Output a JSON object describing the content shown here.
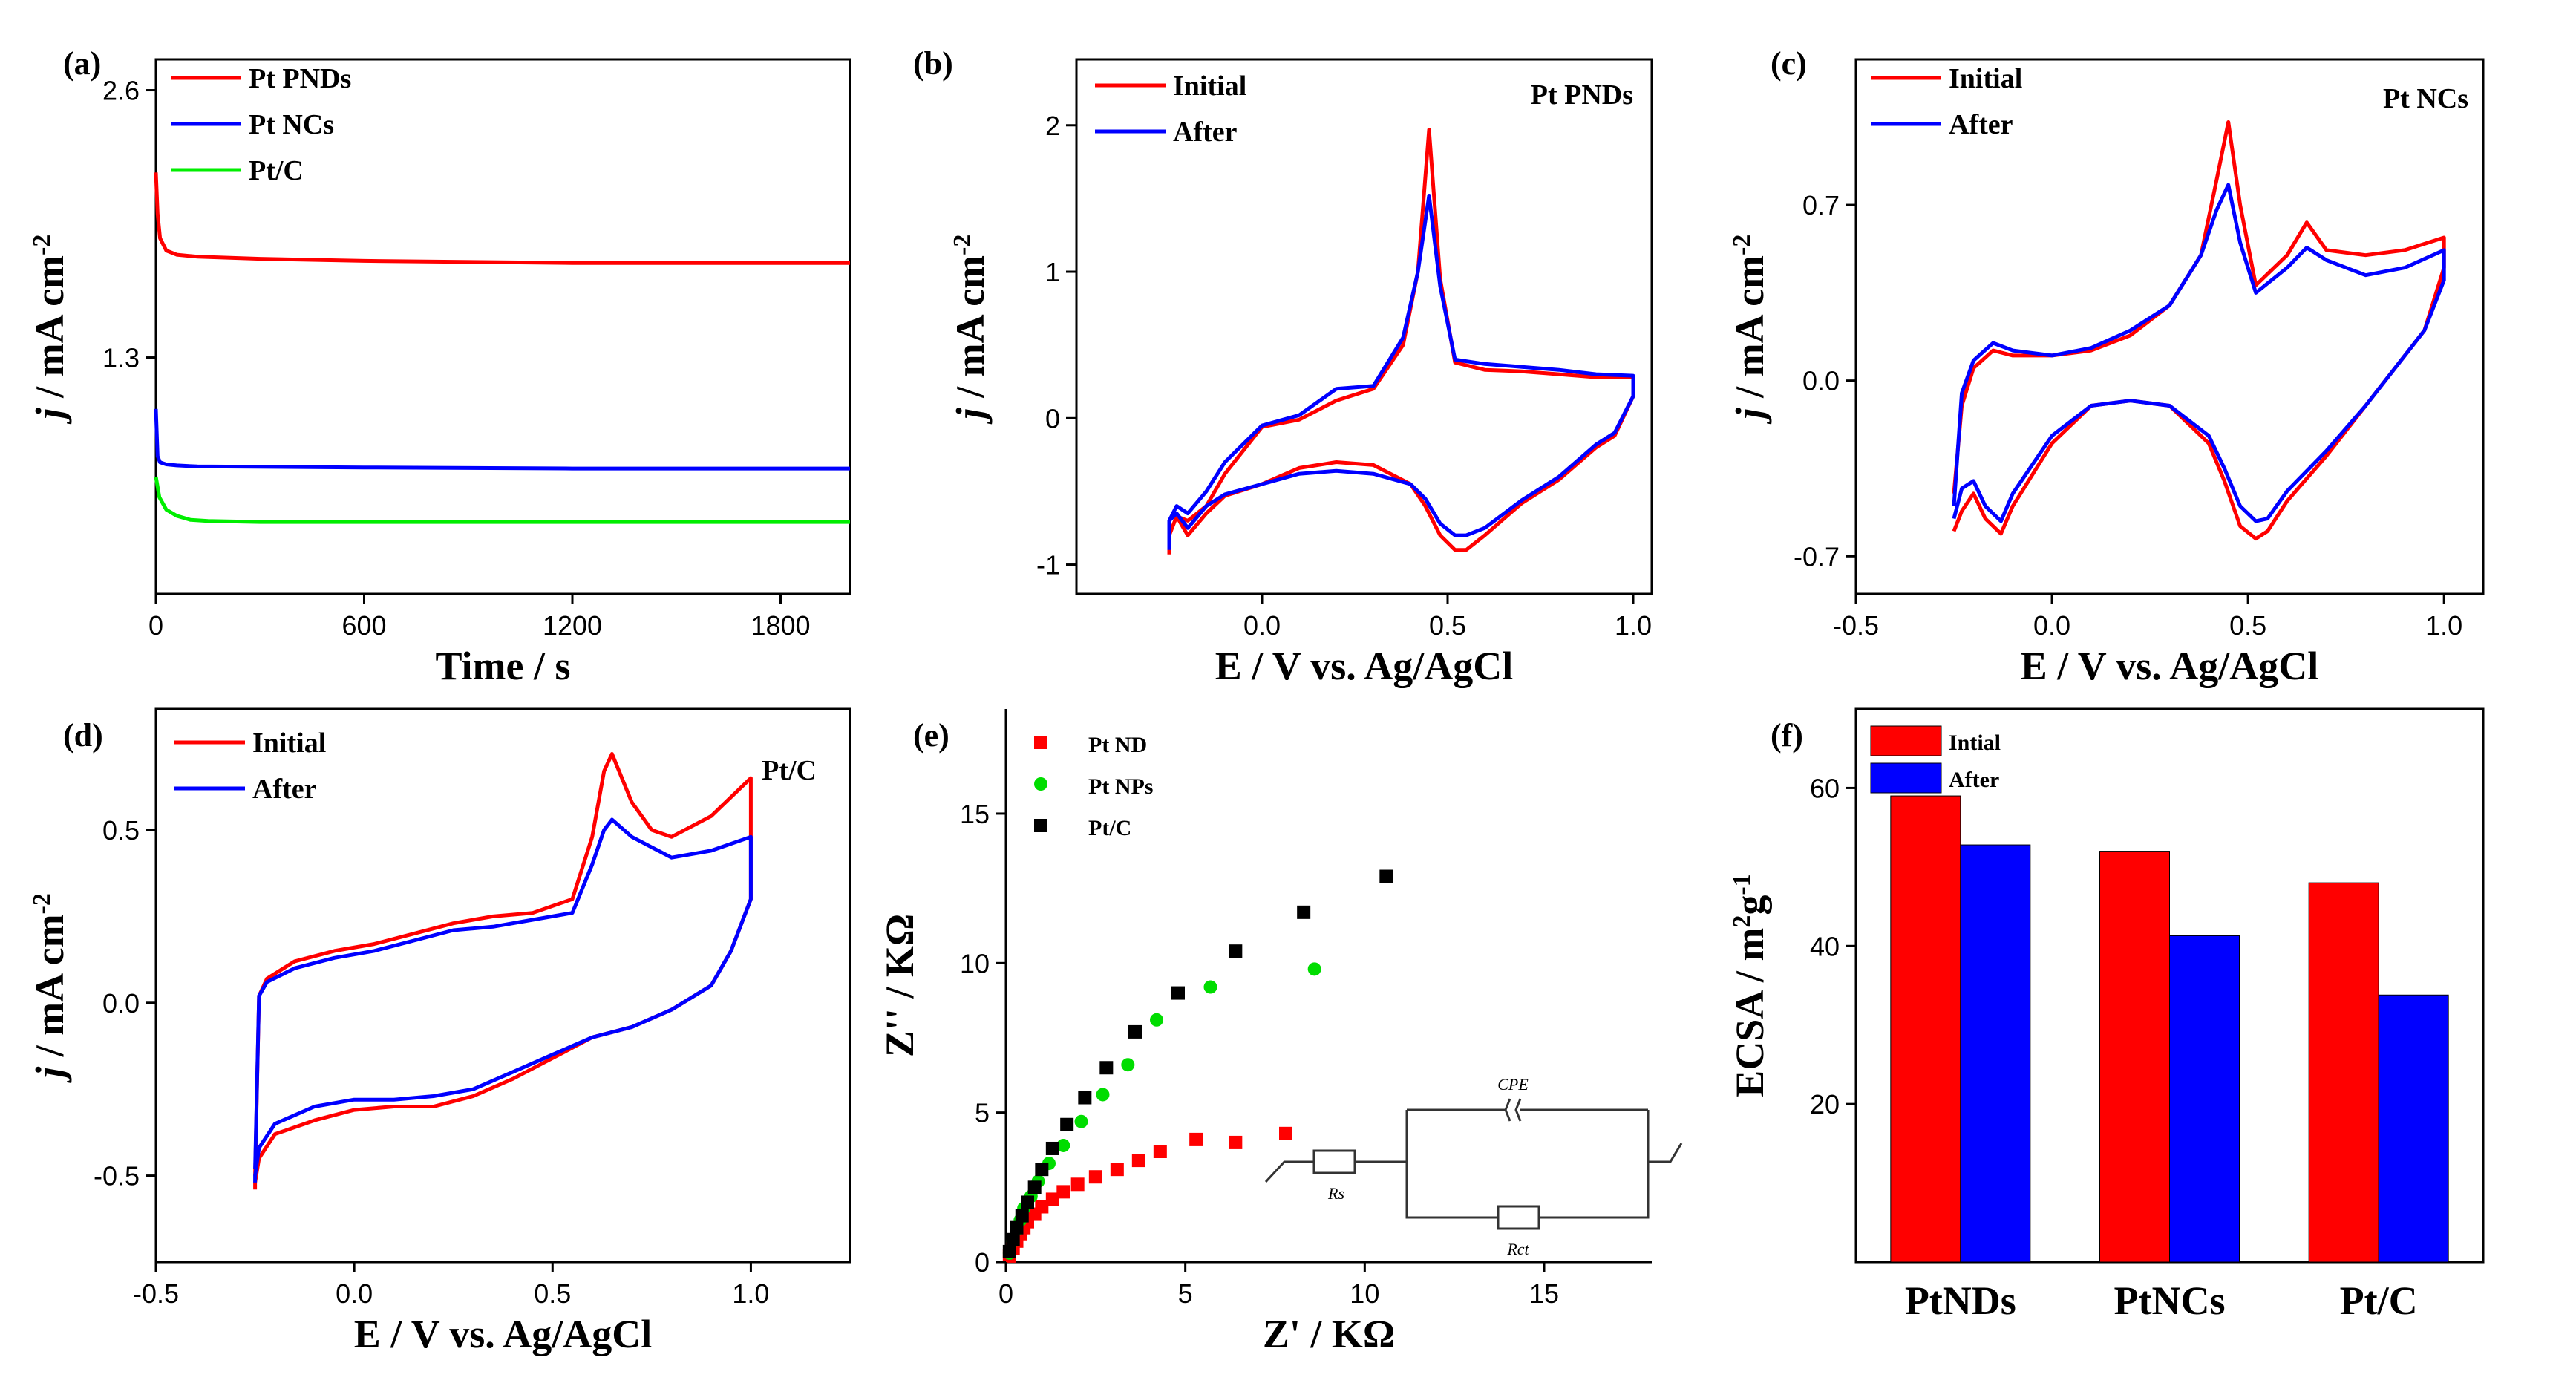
{
  "chart_data": [
    {
      "panel": "(a)",
      "type": "line",
      "xlabel": "Time / s",
      "ylabel": "j / mA cm-2",
      "ylabel_parts": [
        "j",
        " / mA cm",
        "-2"
      ],
      "xlim": [
        0,
        2000
      ],
      "ylim": [
        0.15,
        2.75
      ],
      "xticks": [
        "0",
        "600",
        "1200",
        "1800"
      ],
      "xtick_values": [
        0,
        600,
        1200,
        1800
      ],
      "yticks": [
        "1.3",
        "2.6"
      ],
      "ytick_values": [
        1.3,
        2.6
      ],
      "series": [
        {
          "name": "Pt PNDs",
          "color": "#ff0000",
          "x": [
            0,
            5,
            12,
            30,
            60,
            120,
            300,
            600,
            1200,
            2000
          ],
          "y": [
            2.2,
            2.0,
            1.88,
            1.82,
            1.8,
            1.79,
            1.78,
            1.77,
            1.76,
            1.76
          ]
        },
        {
          "name": "Pt NCs",
          "color": "#0000ff",
          "x": [
            0,
            5,
            12,
            30,
            60,
            120,
            600,
            1200,
            2000
          ],
          "y": [
            1.05,
            0.82,
            0.79,
            0.78,
            0.775,
            0.77,
            0.765,
            0.76,
            0.76
          ]
        },
        {
          "name": "Pt/C",
          "color": "#00ee00",
          "x": [
            0,
            10,
            30,
            60,
            100,
            150,
            300,
            1000,
            2000
          ],
          "y": [
            0.72,
            0.62,
            0.56,
            0.53,
            0.51,
            0.505,
            0.5,
            0.5,
            0.5
          ]
        }
      ]
    },
    {
      "panel": "(b)",
      "type": "line",
      "xlabel": "E / V vs. Ag/AgCl",
      "ylabel": "j / mA cm-2",
      "ylabel_parts": [
        "j",
        " / mA cm",
        "-2"
      ],
      "inset_label": "Pt PNDs",
      "xlim": [
        -0.5,
        1.05
      ],
      "ylim": [
        -1.2,
        2.45
      ],
      "xticks": [
        "0.0",
        "0.5",
        "1.0"
      ],
      "xtick_values": [
        0,
        0.5,
        1.0
      ],
      "yticks": [
        "-1",
        "0",
        "1",
        "2"
      ],
      "ytick_values": [
        -1,
        0,
        1,
        2
      ],
      "series": [
        {
          "name": "Initial",
          "color": "#ff0000",
          "x": [
            -0.25,
            -0.23,
            -0.2,
            -0.15,
            -0.1,
            0.0,
            0.1,
            0.2,
            0.3,
            0.38,
            0.42,
            0.45,
            0.48,
            0.52,
            0.6,
            0.7,
            0.8,
            0.9,
            1.0,
            1.0,
            0.95,
            0.9,
            0.8,
            0.7,
            0.6,
            0.55,
            0.52,
            0.48,
            0.44,
            0.4,
            0.3,
            0.2,
            0.1,
            0.0,
            -0.1,
            -0.15,
            -0.2,
            -0.23,
            -0.25,
            -0.25
          ],
          "y": [
            -0.8,
            -0.67,
            -0.7,
            -0.6,
            -0.38,
            -0.06,
            -0.01,
            0.12,
            0.2,
            0.5,
            1.0,
            1.97,
            0.95,
            0.38,
            0.33,
            0.32,
            0.3,
            0.28,
            0.28,
            0.15,
            -0.12,
            -0.2,
            -0.42,
            -0.58,
            -0.8,
            -0.9,
            -0.9,
            -0.8,
            -0.6,
            -0.45,
            -0.32,
            -0.3,
            -0.34,
            -0.45,
            -0.53,
            -0.65,
            -0.8,
            -0.67,
            -0.8,
            -0.93
          ]
        },
        {
          "name": "After",
          "color": "#0000ff",
          "x": [
            -0.25,
            -0.23,
            -0.2,
            -0.15,
            -0.1,
            0.0,
            0.1,
            0.2,
            0.3,
            0.38,
            0.42,
            0.45,
            0.48,
            0.52,
            0.6,
            0.7,
            0.8,
            0.9,
            1.0,
            1.0,
            0.95,
            0.9,
            0.8,
            0.7,
            0.6,
            0.55,
            0.52,
            0.48,
            0.44,
            0.4,
            0.3,
            0.2,
            0.1,
            0.0,
            -0.1,
            -0.15,
            -0.2,
            -0.23,
            -0.25,
            -0.25
          ],
          "y": [
            -0.7,
            -0.6,
            -0.65,
            -0.5,
            -0.3,
            -0.05,
            0.02,
            0.2,
            0.22,
            0.55,
            1.0,
            1.52,
            0.9,
            0.4,
            0.37,
            0.35,
            0.33,
            0.3,
            0.29,
            0.15,
            -0.1,
            -0.18,
            -0.4,
            -0.56,
            -0.75,
            -0.8,
            -0.8,
            -0.72,
            -0.55,
            -0.45,
            -0.38,
            -0.36,
            -0.38,
            -0.45,
            -0.52,
            -0.6,
            -0.75,
            -0.65,
            -0.7,
            -0.9
          ]
        }
      ]
    },
    {
      "panel": "(c)",
      "type": "line",
      "xlabel": "E / V vs. Ag/AgCl",
      "ylabel": "j / mA cm-2",
      "ylabel_parts": [
        "j",
        " / mA cm",
        "-2"
      ],
      "inset_label": "Pt NCs",
      "xlim": [
        -0.5,
        1.1
      ],
      "ylim": [
        -0.85,
        1.28
      ],
      "xticks": [
        "-0.5",
        "0.0",
        "0.5",
        "1.0"
      ],
      "xtick_values": [
        -0.5,
        0,
        0.5,
        1.0
      ],
      "yticks": [
        "-0.7",
        "0.0",
        "0.7"
      ],
      "ytick_values": [
        -0.7,
        0,
        0.7
      ],
      "series": [
        {
          "name": "Initial",
          "color": "#ff0000",
          "x": [
            -0.25,
            -0.23,
            -0.2,
            -0.15,
            -0.1,
            0.0,
            0.1,
            0.2,
            0.3,
            0.38,
            0.42,
            0.45,
            0.48,
            0.52,
            0.6,
            0.65,
            0.7,
            0.8,
            0.9,
            1.0,
            1.0,
            0.95,
            0.9,
            0.8,
            0.7,
            0.6,
            0.55,
            0.52,
            0.48,
            0.44,
            0.4,
            0.3,
            0.2,
            0.1,
            0.0,
            -0.1,
            -0.13,
            -0.17,
            -0.2,
            -0.23,
            -0.25,
            -0.25
          ],
          "y": [
            -0.45,
            -0.1,
            0.05,
            0.12,
            0.1,
            0.1,
            0.12,
            0.18,
            0.3,
            0.5,
            0.8,
            1.03,
            0.7,
            0.38,
            0.5,
            0.63,
            0.52,
            0.5,
            0.52,
            0.57,
            0.45,
            0.2,
            0.1,
            -0.1,
            -0.3,
            -0.48,
            -0.6,
            -0.63,
            -0.58,
            -0.4,
            -0.25,
            -0.1,
            -0.08,
            -0.1,
            -0.25,
            -0.5,
            -0.61,
            -0.55,
            -0.45,
            -0.52,
            -0.6,
            -0.6
          ]
        },
        {
          "name": "After",
          "color": "#0000ff",
          "x": [
            -0.25,
            -0.23,
            -0.2,
            -0.15,
            -0.1,
            0.0,
            0.1,
            0.2,
            0.3,
            0.38,
            0.42,
            0.45,
            0.48,
            0.52,
            0.6,
            0.65,
            0.7,
            0.8,
            0.9,
            1.0,
            1.0,
            0.95,
            0.9,
            0.8,
            0.7,
            0.6,
            0.55,
            0.52,
            0.48,
            0.44,
            0.4,
            0.3,
            0.2,
            0.1,
            0.0,
            -0.1,
            -0.13,
            -0.17,
            -0.2,
            -0.23,
            -0.25,
            -0.25
          ],
          "y": [
            -0.5,
            -0.05,
            0.08,
            0.15,
            0.12,
            0.1,
            0.13,
            0.2,
            0.3,
            0.5,
            0.68,
            0.78,
            0.55,
            0.35,
            0.45,
            0.53,
            0.48,
            0.42,
            0.45,
            0.52,
            0.4,
            0.2,
            0.1,
            -0.1,
            -0.28,
            -0.44,
            -0.55,
            -0.56,
            -0.5,
            -0.35,
            -0.22,
            -0.1,
            -0.08,
            -0.1,
            -0.22,
            -0.45,
            -0.56,
            -0.5,
            -0.4,
            -0.43,
            -0.55,
            -0.55
          ]
        }
      ]
    },
    {
      "panel": "(d)",
      "type": "line",
      "xlabel": "E / V vs. Ag/AgCl",
      "ylabel": "j / mA cm-2",
      "ylabel_parts": [
        "j",
        " / mA cm",
        "-2"
      ],
      "inset_label": "Pt/C",
      "xlim": [
        -0.5,
        1.25
      ],
      "ylim": [
        -0.75,
        0.85
      ],
      "xticks": [
        "-0.5",
        "0.0",
        "0.5",
        "1.0"
      ],
      "xtick_values": [
        -0.5,
        0,
        0.5,
        1.0
      ],
      "yticks": [
        "-0.5",
        "0.0",
        "0.5"
      ],
      "ytick_values": [
        -0.5,
        0,
        0.5
      ],
      "series": [
        {
          "name": "Initial",
          "color": "#ff0000",
          "x": [
            -0.25,
            -0.24,
            -0.22,
            -0.15,
            -0.05,
            0.05,
            0.15,
            0.25,
            0.35,
            0.45,
            0.55,
            0.6,
            0.63,
            0.65,
            0.7,
            0.75,
            0.8,
            0.9,
            1.0,
            1.0,
            0.95,
            0.9,
            0.8,
            0.7,
            0.6,
            0.5,
            0.4,
            0.3,
            0.2,
            0.1,
            0.0,
            -0.1,
            -0.2,
            -0.24,
            -0.25,
            -0.25
          ],
          "y": [
            -0.5,
            0.02,
            0.07,
            0.12,
            0.15,
            0.17,
            0.2,
            0.23,
            0.25,
            0.26,
            0.3,
            0.48,
            0.67,
            0.72,
            0.58,
            0.5,
            0.48,
            0.54,
            0.65,
            0.3,
            0.15,
            0.05,
            -0.02,
            -0.07,
            -0.1,
            -0.16,
            -0.22,
            -0.27,
            -0.3,
            -0.3,
            -0.31,
            -0.34,
            -0.38,
            -0.45,
            -0.52,
            -0.54
          ]
        },
        {
          "name": "After",
          "color": "#0000ff",
          "x": [
            -0.25,
            -0.24,
            -0.22,
            -0.15,
            -0.05,
            0.05,
            0.15,
            0.25,
            0.35,
            0.45,
            0.55,
            0.6,
            0.63,
            0.65,
            0.7,
            0.75,
            0.8,
            0.9,
            1.0,
            1.0,
            0.95,
            0.9,
            0.8,
            0.7,
            0.6,
            0.5,
            0.4,
            0.3,
            0.2,
            0.1,
            0.0,
            -0.1,
            -0.2,
            -0.24,
            -0.25,
            -0.25
          ],
          "y": [
            -0.48,
            0.02,
            0.06,
            0.1,
            0.13,
            0.15,
            0.18,
            0.21,
            0.22,
            0.24,
            0.26,
            0.4,
            0.5,
            0.53,
            0.48,
            0.45,
            0.42,
            0.44,
            0.48,
            0.3,
            0.15,
            0.05,
            -0.02,
            -0.07,
            -0.1,
            -0.15,
            -0.2,
            -0.25,
            -0.27,
            -0.28,
            -0.28,
            -0.3,
            -0.35,
            -0.42,
            -0.5,
            -0.52
          ]
        }
      ]
    },
    {
      "panel": "(e)",
      "type": "scatter",
      "xlabel": "Z' / KΩ",
      "ylabel": "Z'' / KΩ",
      "xlim": [
        0,
        18
      ],
      "ylim": [
        0,
        18.5
      ],
      "xticks": [
        "0",
        "5",
        "10",
        "15"
      ],
      "xtick_values": [
        0,
        5,
        10,
        15
      ],
      "yticks": [
        "0",
        "5",
        "10",
        "15"
      ],
      "ytick_values": [
        0,
        5,
        10,
        15
      ],
      "circuit_labels": {
        "cpe": "CPE",
        "rs": "Rs",
        "rct": "Rct"
      },
      "series": [
        {
          "name": "Pt ND",
          "color": "#ff0000",
          "marker": "square",
          "x": [
            0.1,
            0.2,
            0.3,
            0.4,
            0.5,
            0.6,
            0.8,
            1.0,
            1.3,
            1.6,
            2.0,
            2.5,
            3.1,
            3.7,
            4.3,
            5.3,
            6.4,
            7.8
          ],
          "y": [
            0.2,
            0.45,
            0.7,
            0.95,
            1.15,
            1.35,
            1.6,
            1.85,
            2.1,
            2.35,
            2.6,
            2.85,
            3.1,
            3.4,
            3.7,
            4.1,
            4.0,
            4.3
          ]
        },
        {
          "name": "Pt NPs",
          "color": "#00dd00",
          "marker": "circle",
          "x": [
            0.1,
            0.2,
            0.3,
            0.4,
            0.5,
            0.7,
            0.9,
            1.2,
            1.6,
            2.1,
            2.7,
            3.4,
            4.2,
            5.7,
            8.6
          ],
          "y": [
            0.3,
            0.7,
            1.1,
            1.4,
            1.8,
            2.2,
            2.7,
            3.3,
            3.9,
            4.7,
            5.6,
            6.6,
            8.1,
            9.2,
            9.8
          ]
        },
        {
          "name": "Pt/C",
          "color": "#000000",
          "marker": "square",
          "x": [
            0.1,
            0.2,
            0.3,
            0.45,
            0.6,
            0.8,
            1.0,
            1.3,
            1.7,
            2.2,
            2.8,
            3.6,
            4.8,
            6.4,
            8.3,
            10.6
          ],
          "y": [
            0.35,
            0.75,
            1.15,
            1.55,
            2.0,
            2.5,
            3.1,
            3.8,
            4.6,
            5.5,
            6.5,
            7.7,
            9.0,
            10.4,
            11.7,
            12.9
          ]
        }
      ]
    },
    {
      "panel": "(f)",
      "type": "bar",
      "xlabel": "",
      "ylabel": "ECSA / m2g-1",
      "ylabel_parts": [
        "ECSA / m",
        "2",
        "g",
        "-1"
      ],
      "categories": [
        "PtNDs",
        "PtNCs",
        "Pt/C"
      ],
      "ylim": [
        0,
        70
      ],
      "yticks": [
        "20",
        "40",
        "60"
      ],
      "ytick_values": [
        20,
        40,
        60
      ],
      "series": [
        {
          "name": "Intial",
          "color": "#ff0000",
          "values": [
            59.0,
            52.0,
            48.0
          ]
        },
        {
          "name": "After",
          "color": "#0000ff",
          "values": [
            52.8,
            41.3,
            33.8
          ]
        }
      ]
    }
  ]
}
